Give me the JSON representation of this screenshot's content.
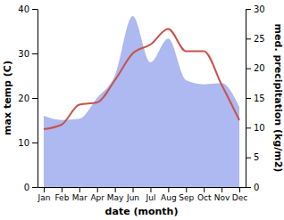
{
  "chart_data": {
    "type": "line",
    "x_label": "date (month)",
    "y_label": "max temp (C)",
    "y2_label": "med. precipitation (kg/m2)",
    "categories": [
      "Jan",
      "Feb",
      "Mar",
      "Apr",
      "May",
      "Jun",
      "Jul",
      "Aug",
      "Sep",
      "Oct",
      "Nov",
      "Dec"
    ],
    "series": [
      {
        "type": "area",
        "axis": "y2",
        "color": "#adb9f0",
        "values": [
          12,
          11.3,
          11.5,
          15,
          18.8,
          28.8,
          21,
          25,
          18,
          17.3,
          17.5,
          13.5
        ]
      },
      {
        "type": "line",
        "color": "#c8524a",
        "values": [
          13,
          14,
          18.5,
          19,
          24,
          30,
          32,
          35.5,
          30.5,
          30.5,
          23,
          15
        ]
      }
    ],
    "ylim": [
      0,
      40
    ],
    "yticks": [
      0,
      10,
      20,
      30,
      40
    ],
    "y2lim": [
      0,
      30
    ],
    "y2ticks": [
      0,
      5,
      10,
      15,
      20,
      25,
      30
    ],
    "grid": false
  }
}
